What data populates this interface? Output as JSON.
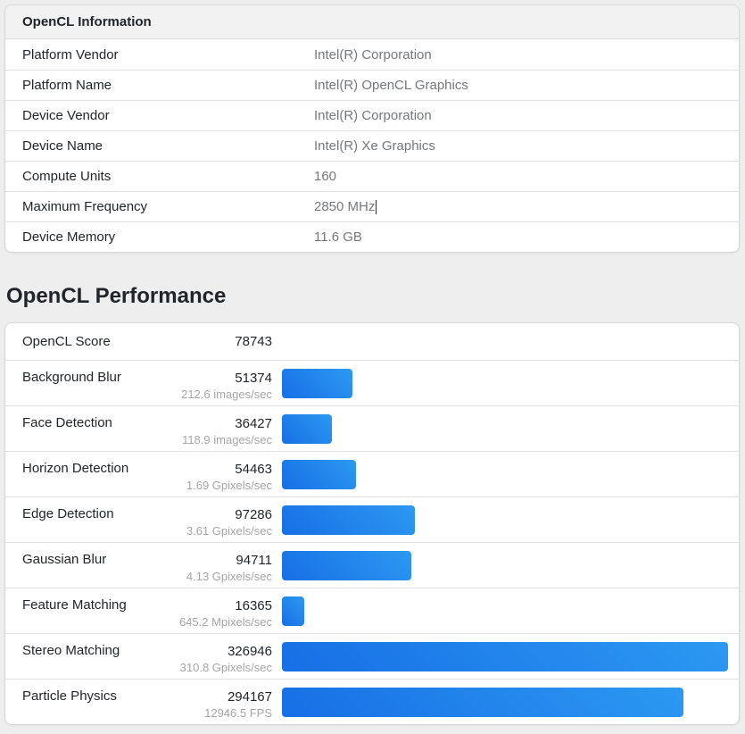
{
  "page": {
    "background_color": "#eeeeee"
  },
  "info_card": {
    "title": "OpenCL Information",
    "rows": [
      {
        "label": "Platform Vendor",
        "value": "Intel(R) Corporation",
        "caret": false
      },
      {
        "label": "Platform Name",
        "value": "Intel(R) OpenCL Graphics",
        "caret": false
      },
      {
        "label": "Device Vendor",
        "value": "Intel(R) Corporation",
        "caret": false
      },
      {
        "label": "Device Name",
        "value": "Intel(R) Xe Graphics",
        "caret": false
      },
      {
        "label": "Compute Units",
        "value": "160",
        "caret": false
      },
      {
        "label": "Maximum Frequency",
        "value": "2850 MHz",
        "caret": true
      },
      {
        "label": "Device Memory",
        "value": "11.6 GB",
        "caret": false
      }
    ]
  },
  "performance": {
    "heading": "OpenCL Performance",
    "score_label": "OpenCL Score",
    "score": "78743",
    "max_score": 326946,
    "bar_gradient": {
      "start": "#176fe5",
      "end": "#2c99f2"
    },
    "benchmarks": [
      {
        "name": "Background Blur",
        "score": 51374,
        "rate": "212.6 images/sec"
      },
      {
        "name": "Face Detection",
        "score": 36427,
        "rate": "118.9 images/sec"
      },
      {
        "name": "Horizon Detection",
        "score": 54463,
        "rate": "1.69 Gpixels/sec"
      },
      {
        "name": "Edge Detection",
        "score": 97286,
        "rate": "3.61 Gpixels/sec"
      },
      {
        "name": "Gaussian Blur",
        "score": 94711,
        "rate": "4.13 Gpixels/sec"
      },
      {
        "name": "Feature Matching",
        "score": 16365,
        "rate": "645.2 Mpixels/sec"
      },
      {
        "name": "Stereo Matching",
        "score": 326946,
        "rate": "310.8 Gpixels/sec"
      },
      {
        "name": "Particle Physics",
        "score": 294167,
        "rate": "12946.5 FPS"
      }
    ]
  }
}
